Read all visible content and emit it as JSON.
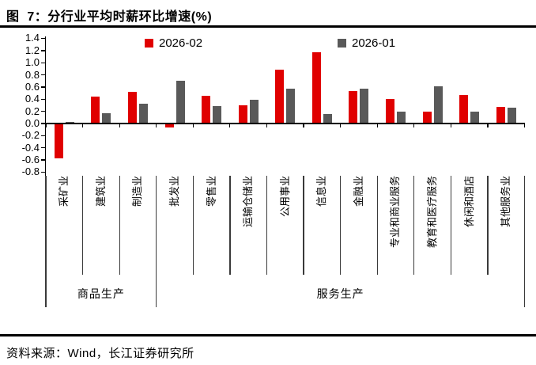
{
  "title": "图  7：分行业平均时薪环比增速(%)",
  "source": "资料来源：Wind，长江证券研究所",
  "colors": {
    "series_red": "#e00000",
    "series_gray": "#595959",
    "axis": "#000000"
  },
  "legend": [
    {
      "label": "2026-02",
      "color": "#e00000"
    },
    {
      "label": "2026-01",
      "color": "#595959"
    }
  ],
  "y_axis": {
    "ticks": [
      "1.4",
      "1.2",
      "1.0",
      "0.8",
      "0.6",
      "0.4",
      "0.2",
      "0.0",
      "-0.2",
      "-0.4",
      "-0.6",
      "-0.8"
    ],
    "max": 1.4,
    "min": -0.8,
    "step": 0.2
  },
  "groups": [
    {
      "label": "商品生产",
      "from": 0,
      "to": 3
    },
    {
      "label": "服务生产",
      "from": 3,
      "to": 13
    }
  ],
  "chart_data": {
    "type": "bar",
    "title": "分行业平均时薪环比增速(%)",
    "categories": [
      "采矿业",
      "建筑业",
      "制造业",
      "批发业",
      "零售业",
      "运输仓储业",
      "公用事业",
      "信息业",
      "金融业",
      "专业和商业服务",
      "教育和医疗服务",
      "休闲和酒店",
      "其他服务业"
    ],
    "series": [
      {
        "name": "2026-02",
        "color": "#e00000",
        "values": [
          -0.57,
          0.44,
          0.52,
          -0.07,
          0.45,
          0.3,
          0.89,
          1.17,
          0.54,
          0.4,
          0.19,
          0.47,
          0.27
        ]
      },
      {
        "name": "2026-01",
        "color": "#595959",
        "values": [
          0.02,
          0.17,
          0.32,
          0.7,
          0.29,
          0.39,
          0.57,
          0.15,
          0.57,
          0.19,
          0.61,
          0.2,
          0.26
        ]
      }
    ],
    "xlabel": "",
    "ylabel": "",
    "ylim": [
      -0.8,
      1.4
    ],
    "ytick_step": 0.2,
    "grid": false,
    "legend_position": "top",
    "category_groups": [
      "商品生产",
      "商品生产",
      "商品生产",
      "服务生产",
      "服务生产",
      "服务生产",
      "服务生产",
      "服务生产",
      "服务生产",
      "服务生产",
      "服务生产",
      "服务生产",
      "服务生产"
    ]
  }
}
